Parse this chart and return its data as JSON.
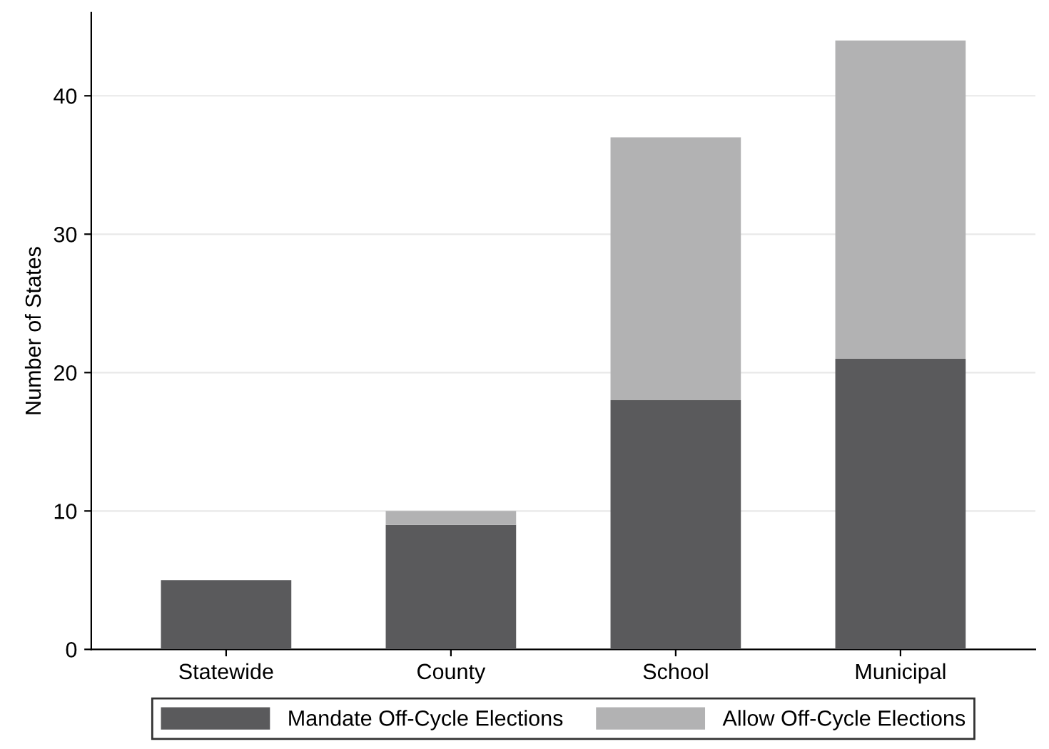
{
  "chart_data": {
    "type": "bar",
    "stacked": true,
    "ylabel": "Number of States",
    "categories": [
      "Statewide",
      "County",
      "School",
      "Municipal"
    ],
    "series": [
      {
        "name": "Mandate Off-Cycle Elections",
        "color": "#5a5a5c",
        "values": [
          5,
          9,
          18,
          21
        ]
      },
      {
        "name": "Allow Off-Cycle Elections",
        "color": "#b2b2b3",
        "values": [
          0,
          1,
          19,
          23
        ]
      }
    ],
    "ylim": [
      0,
      46
    ],
    "yticks": [
      0,
      10,
      20,
      30,
      40
    ],
    "grid": "y",
    "legend": "bottom"
  }
}
